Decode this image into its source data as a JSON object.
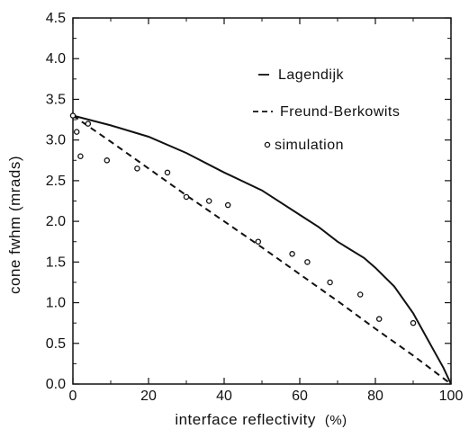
{
  "chart_data": {
    "type": "line",
    "xlabel": "interface reflectivity",
    "xlabel_unit": "(%)",
    "ylabel": "cone fwhm (mrads)",
    "xlim": [
      0,
      100
    ],
    "ylim": [
      0,
      4.5
    ],
    "x_ticks": [
      0,
      20,
      40,
      60,
      80,
      100
    ],
    "y_ticks": [
      0.0,
      0.5,
      1.0,
      1.5,
      2.0,
      2.5,
      3.0,
      3.5,
      4.0,
      4.5
    ],
    "x_tick_labels": [
      "0",
      "20",
      "40",
      "60",
      "80",
      "100"
    ],
    "y_tick_labels": [
      "0.0",
      "0.5",
      "1.0",
      "1.5",
      "2.0",
      "2.5",
      "3.0",
      "3.5",
      "4.0",
      "4.5"
    ],
    "grid": false,
    "legend_position": "top-right",
    "series": [
      {
        "name": "Lagendijk",
        "style": "solid",
        "color": "#111111",
        "x": [
          0,
          10,
          20,
          30,
          40,
          50,
          60,
          65,
          70,
          77,
          80,
          85,
          90,
          95,
          98,
          100
        ],
        "y": [
          3.3,
          3.18,
          3.04,
          2.84,
          2.6,
          2.38,
          2.08,
          1.93,
          1.75,
          1.55,
          1.43,
          1.2,
          0.87,
          0.45,
          0.2,
          0.0
        ]
      },
      {
        "name": "Freund-Berkowits",
        "style": "dashed",
        "color": "#111111",
        "x": [
          0,
          10,
          20,
          30,
          40,
          50,
          60,
          70,
          80,
          90,
          100
        ],
        "y": [
          3.3,
          2.98,
          2.65,
          2.32,
          2.0,
          1.68,
          1.35,
          1.02,
          0.68,
          0.35,
          0.0
        ]
      },
      {
        "name": "simulation",
        "style": "markers",
        "color": "#111111",
        "x": [
          0,
          1,
          2,
          4,
          9,
          17,
          25,
          30,
          36,
          41,
          49,
          58,
          62,
          68,
          76,
          81,
          90
        ],
        "y": [
          3.3,
          3.1,
          2.8,
          3.2,
          2.75,
          2.65,
          2.6,
          2.3,
          2.25,
          2.2,
          1.75,
          1.6,
          1.5,
          1.25,
          1.1,
          0.8,
          0.75
        ]
      }
    ]
  }
}
